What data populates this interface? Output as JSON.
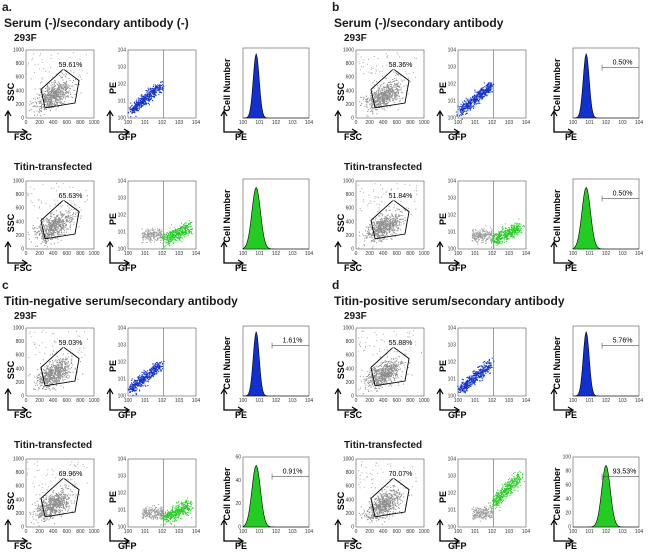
{
  "panels": [
    {
      "letter": "a.",
      "title": "Serum (-)/secondary antibody (-)",
      "rows": [
        {
          "label": "293F",
          "gate_pct": "59.61%",
          "hist_pct": "",
          "color": "#1030d0",
          "hist_ymax": ""
        },
        {
          "label": "Titin-transfected",
          "gate_pct": "65.63%",
          "hist_pct": "",
          "color": "#22cc22",
          "hist_ymax": ""
        }
      ]
    },
    {
      "letter": "b",
      "title": "Serum (-)/secondary antibody",
      "rows": [
        {
          "label": "293F",
          "gate_pct": "58.36%",
          "hist_pct": "0.50%",
          "color": "#1030d0",
          "hist_ymax": ""
        },
        {
          "label": "Titin-transfected",
          "gate_pct": "51.84%",
          "hist_pct": "0.50%",
          "color": "#22cc22",
          "hist_ymax": ""
        }
      ]
    },
    {
      "letter": "c",
      "title": "Titin-negative serum/secondary antibody",
      "rows": [
        {
          "label": "293F",
          "gate_pct": "59.03%",
          "hist_pct": "1.61%",
          "color": "#1030d0",
          "hist_ymax": ""
        },
        {
          "label": "Titin-transfected",
          "gate_pct": "69.96%",
          "hist_pct": "0.91%",
          "color": "#22cc22",
          "hist_ymax": "60"
        }
      ]
    },
    {
      "letter": "d",
      "title": "Titin-positive serum/secondary antibody",
      "rows": [
        {
          "label": "293F",
          "gate_pct": "55.88%",
          "hist_pct": "5.76%",
          "color": "#1030d0",
          "hist_ymax": ""
        },
        {
          "label": "Titin-transfected",
          "gate_pct": "70.07%",
          "hist_pct": "93.53%",
          "color": "#22cc22",
          "hist_ymax": "100"
        }
      ]
    }
  ],
  "axes": {
    "ssc": "SSC",
    "fsc": "FSC",
    "pe": "PE",
    "gfp": "GFP",
    "cell_number": "Cell Number"
  },
  "chart_data": {
    "type": "scatter",
    "subtype": "flow cytometry (SSC vs FSC, PE vs GFP, PE histogram)",
    "title": "",
    "scatter_ticks": [
      "0",
      "200",
      "400",
      "600",
      "800",
      "1000"
    ],
    "log_ticks": [
      "10^0",
      "10^1",
      "10^2",
      "10^3",
      "10^4"
    ],
    "hist_ticks_60": [
      "0",
      "20",
      "40",
      "60"
    ],
    "hist_ticks_100": [
      "0",
      "20",
      "40",
      "60",
      "80",
      "100"
    ],
    "gates": [
      {
        "panel": "a",
        "row": "293F",
        "gated_percent": 59.61
      },
      {
        "panel": "a",
        "row": "Titin-transfected",
        "gated_percent": 65.63
      },
      {
        "panel": "b",
        "row": "293F",
        "gated_percent": 58.36
      },
      {
        "panel": "b",
        "row": "Titin-transfected",
        "gated_percent": 51.84
      },
      {
        "panel": "c",
        "row": "293F",
        "gated_percent": 59.03
      },
      {
        "panel": "c",
        "row": "Titin-transfected",
        "gated_percent": 69.96
      },
      {
        "panel": "d",
        "row": "293F",
        "gated_percent": 55.88
      },
      {
        "panel": "d",
        "row": "Titin-transfected",
        "gated_percent": 70.07
      }
    ],
    "pe_positive_percent": [
      {
        "panel": "b",
        "row": "293F",
        "value": 0.5
      },
      {
        "panel": "b",
        "row": "Titin-transfected",
        "value": 0.5
      },
      {
        "panel": "c",
        "row": "293F",
        "value": 1.61
      },
      {
        "panel": "c",
        "row": "Titin-transfected",
        "value": 0.91
      },
      {
        "panel": "d",
        "row": "293F",
        "value": 5.76
      },
      {
        "panel": "d",
        "row": "Titin-transfected",
        "value": 93.53
      }
    ],
    "colors": {
      "gate_events": "#8c8c8c",
      "non_transfected": "#1030d0",
      "transfected": "#22cc22"
    }
  }
}
